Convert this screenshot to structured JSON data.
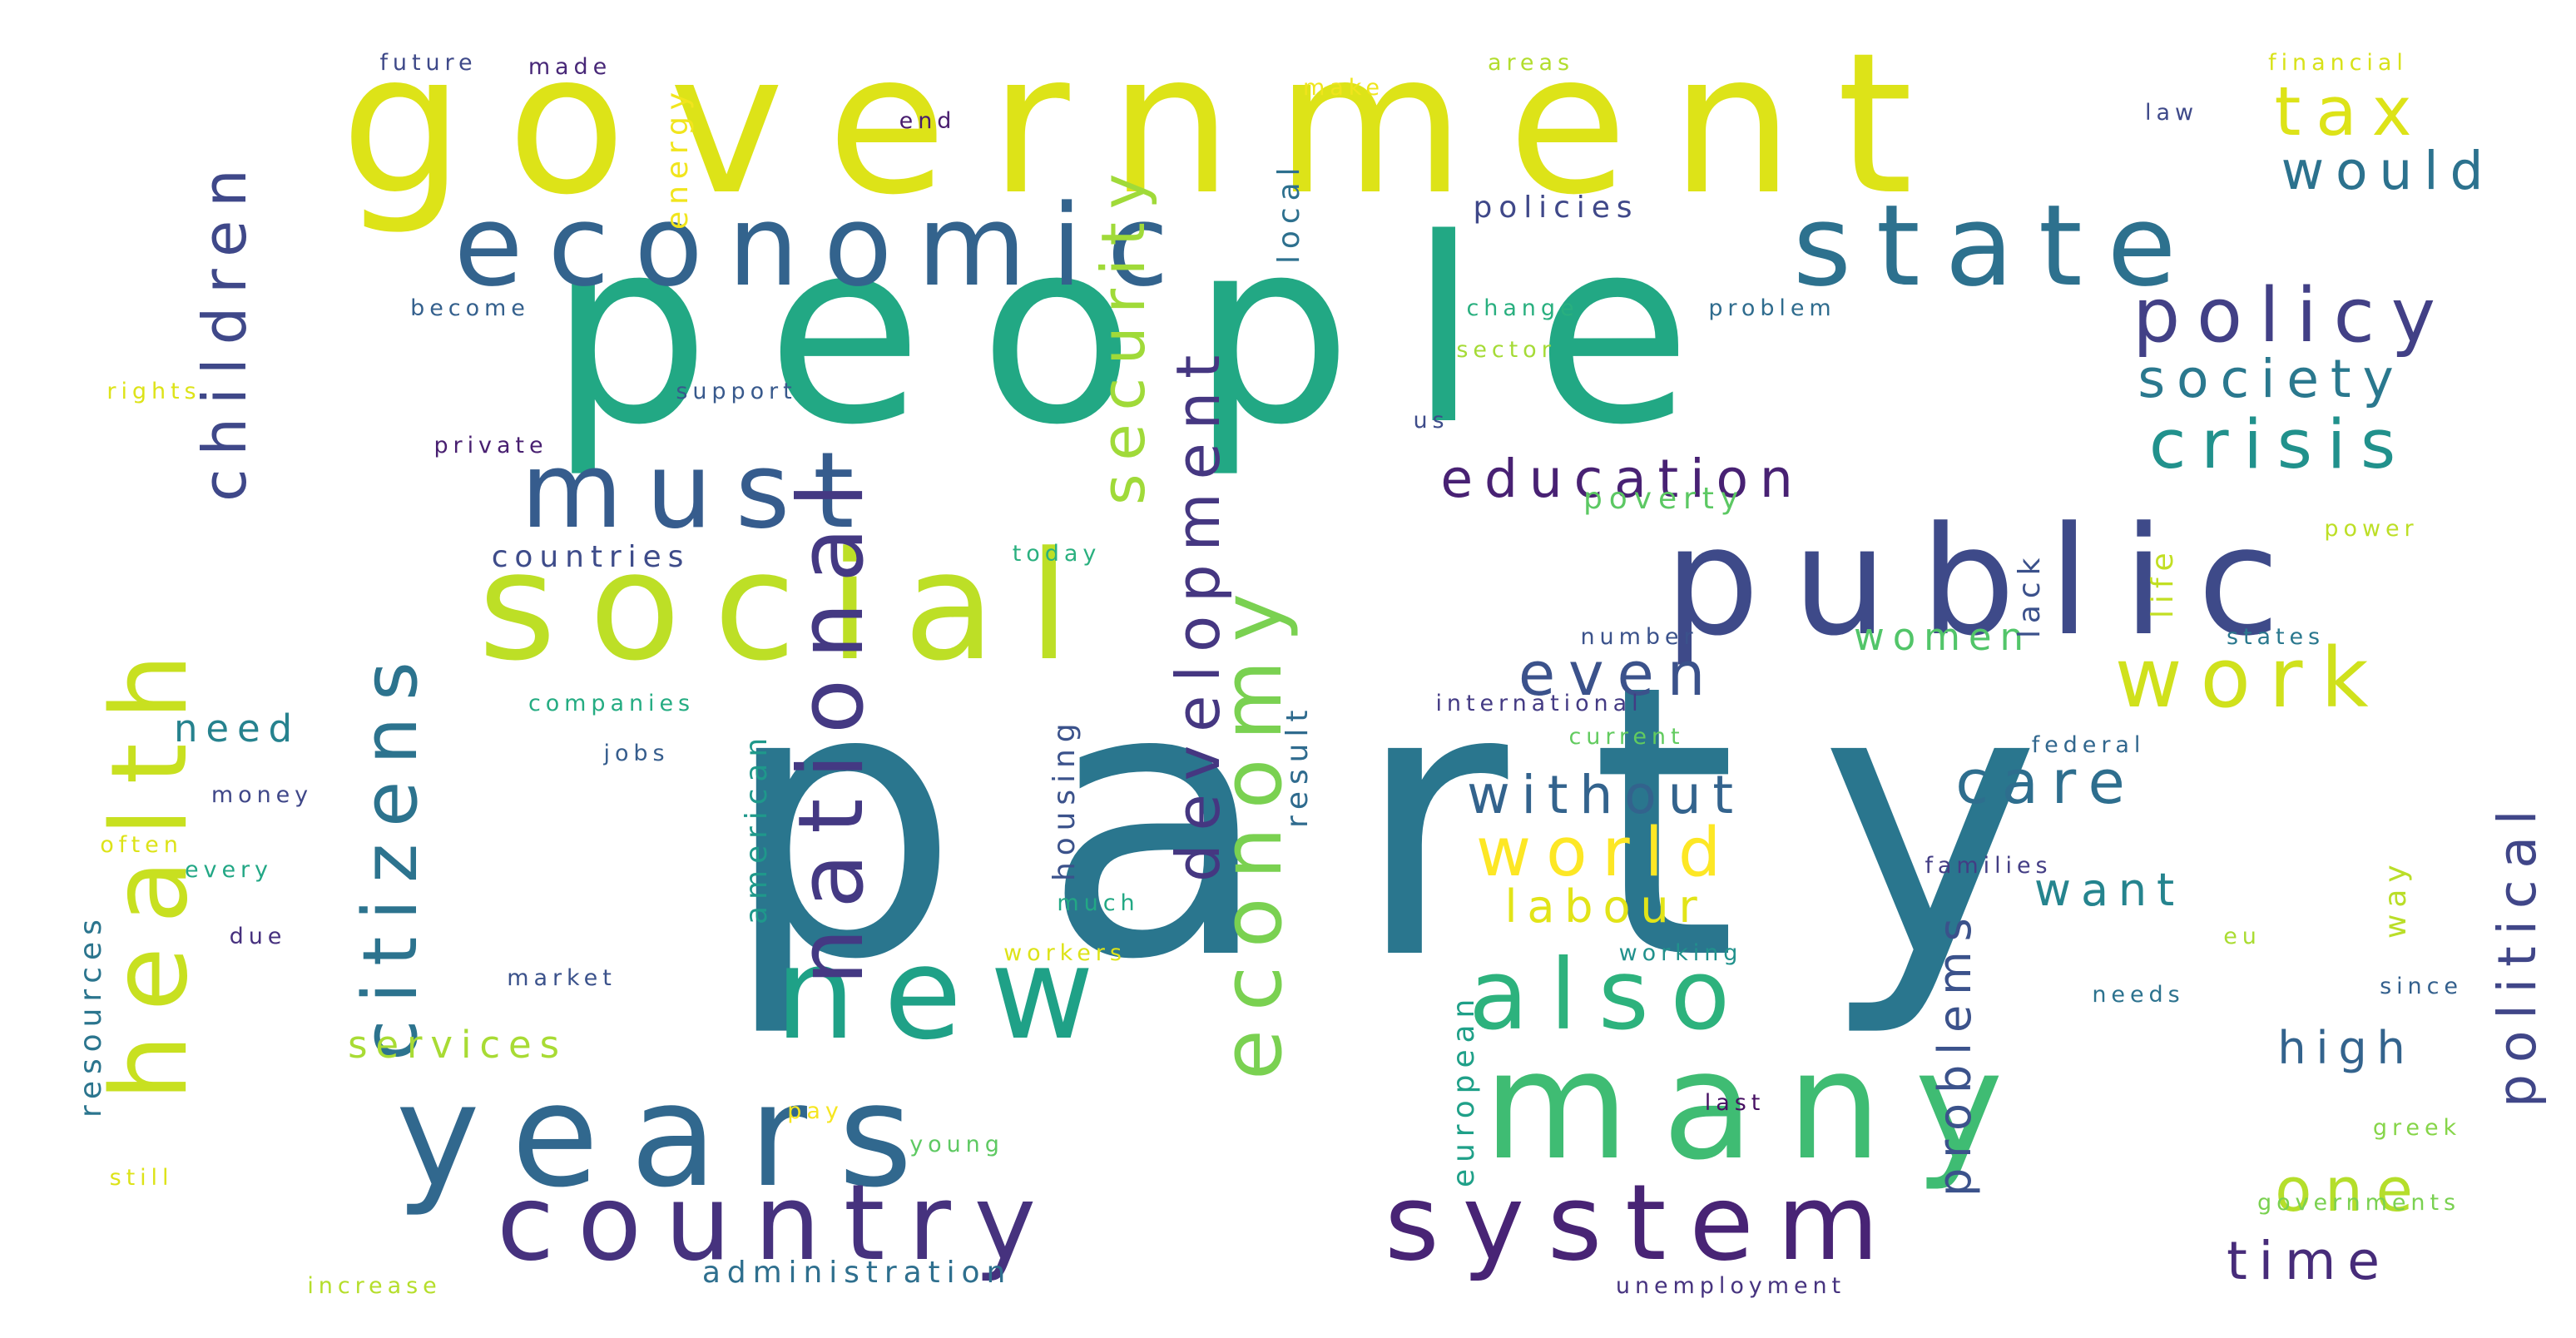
{
  "words": [
    {
      "text": "party",
      "color": "#2a768e"
    },
    {
      "text": "people",
      "color": "#22a884"
    },
    {
      "text": "government",
      "color": "#dde318"
    },
    {
      "text": "public",
      "color": "#3e4a89"
    },
    {
      "text": "social",
      "color": "#bddf26"
    },
    {
      "text": "many",
      "color": "#3fbc73"
    },
    {
      "text": "years",
      "color": "#31688e"
    },
    {
      "text": "economic",
      "color": "#33638d"
    },
    {
      "text": "state",
      "color": "#2d718e"
    },
    {
      "text": "country",
      "color": "#46327e"
    },
    {
      "text": "system",
      "color": "#482475"
    },
    {
      "text": "health",
      "color": "#c8e020"
    },
    {
      "text": "new",
      "color": "#1fa187"
    },
    {
      "text": "also",
      "color": "#2db27d"
    },
    {
      "text": "must",
      "color": "#365c8d"
    },
    {
      "text": "work",
      "color": "#d0e11c"
    },
    {
      "text": "national",
      "color": "#443983"
    },
    {
      "text": "policy",
      "color": "#424086"
    },
    {
      "text": "crisis",
      "color": "#21918c"
    },
    {
      "text": "tax",
      "color": "#dde318"
    },
    {
      "text": "economy",
      "color": "#7ad151"
    },
    {
      "text": "would",
      "color": "#2c728e"
    },
    {
      "text": "society",
      "color": "#2a788e"
    },
    {
      "text": "education",
      "color": "#482173"
    },
    {
      "text": "even",
      "color": "#3b528b"
    },
    {
      "text": "care",
      "color": "#2e6e8e"
    },
    {
      "text": "world",
      "color": "#fde725"
    },
    {
      "text": "without",
      "color": "#33638d"
    },
    {
      "text": "development",
      "color": "#453781"
    },
    {
      "text": "security",
      "color": "#a0da39"
    },
    {
      "text": "citizens",
      "color": "#2c738e"
    },
    {
      "text": "children",
      "color": "#3f4889"
    },
    {
      "text": "one",
      "color": "#b5de2b"
    },
    {
      "text": "time",
      "color": "#472c7a"
    },
    {
      "text": "political",
      "color": "#404688"
    },
    {
      "text": "problems",
      "color": "#3b528b"
    },
    {
      "text": "high",
      "color": "#33638d"
    },
    {
      "text": "labour",
      "color": "#e2e418"
    },
    {
      "text": "want",
      "color": "#25848e"
    },
    {
      "text": "women",
      "color": "#52c569"
    },
    {
      "text": "services",
      "color": "#a8db34"
    },
    {
      "text": "administration",
      "color": "#2e6f8e"
    },
    {
      "text": "countries",
      "color": "#3e4c8a"
    },
    {
      "text": "need",
      "color": "#26828e"
    },
    {
      "text": "policies",
      "color": "#3f4889"
    },
    {
      "text": "poverty",
      "color": "#5cc863"
    },
    {
      "text": "international",
      "color": "#443b84"
    },
    {
      "text": "future",
      "color": "#3e4989"
    },
    {
      "text": "made",
      "color": "#482878"
    },
    {
      "text": "end",
      "color": "#481c6e"
    },
    {
      "text": "energy",
      "color": "#f1e51d"
    },
    {
      "text": "make",
      "color": "#efe51c"
    },
    {
      "text": "areas",
      "color": "#b2dd2d"
    },
    {
      "text": "financial",
      "color": "#d8e219"
    },
    {
      "text": "law",
      "color": "#3e4989"
    },
    {
      "text": "local",
      "color": "#2d708e"
    },
    {
      "text": "become",
      "color": "#34608d"
    },
    {
      "text": "change",
      "color": "#29af7f"
    },
    {
      "text": "problem",
      "color": "#2f6c8e"
    },
    {
      "text": "sector",
      "color": "#a5db36"
    },
    {
      "text": "rights",
      "color": "#dde318"
    },
    {
      "text": "support",
      "color": "#38598c"
    },
    {
      "text": "private",
      "color": "#481f70"
    },
    {
      "text": "us",
      "color": "#3e4c8a"
    },
    {
      "text": "power",
      "color": "#bddf26"
    },
    {
      "text": "today",
      "color": "#2ab07f"
    },
    {
      "text": "lack",
      "color": "#3b518b"
    },
    {
      "text": "life",
      "color": "#c2df23"
    },
    {
      "text": "number",
      "color": "#3b528b"
    },
    {
      "text": "states",
      "color": "#2a788e"
    },
    {
      "text": "companies",
      "color": "#25ac82"
    },
    {
      "text": "current",
      "color": "#62cb5f"
    },
    {
      "text": "jobs",
      "color": "#365d8d"
    },
    {
      "text": "housing",
      "color": "#3b528b"
    },
    {
      "text": "result",
      "color": "#2f6b8e"
    },
    {
      "text": "american",
      "color": "#1f988b"
    },
    {
      "text": "federal",
      "color": "#31678e"
    },
    {
      "text": "money",
      "color": "#3f4788"
    },
    {
      "text": "often",
      "color": "#dde318"
    },
    {
      "text": "every",
      "color": "#22a785"
    },
    {
      "text": "families",
      "color": "#433d84"
    },
    {
      "text": "way",
      "color": "#bade28"
    },
    {
      "text": "due",
      "color": "#46307e"
    },
    {
      "text": "much",
      "color": "#22a884"
    },
    {
      "text": "resources",
      "color": "#2b758e"
    },
    {
      "text": "workers",
      "color": "#dde318"
    },
    {
      "text": "working",
      "color": "#21918c"
    },
    {
      "text": "eu",
      "color": "#aadc32"
    },
    {
      "text": "market",
      "color": "#3b528b"
    },
    {
      "text": "european",
      "color": "#1fa088"
    },
    {
      "text": "needs",
      "color": "#2c728e"
    },
    {
      "text": "since",
      "color": "#34608d"
    },
    {
      "text": "pay",
      "color": "#f6e620"
    },
    {
      "text": "last",
      "color": "#471063"
    },
    {
      "text": "young",
      "color": "#5ec962"
    },
    {
      "text": "greek",
      "color": "#86d549"
    },
    {
      "text": "still",
      "color": "#dde318"
    },
    {
      "text": "governments",
      "color": "#7ad151"
    },
    {
      "text": "increase",
      "color": "#b5de2b"
    },
    {
      "text": "unemployment",
      "color": "#46337f"
    }
  ]
}
